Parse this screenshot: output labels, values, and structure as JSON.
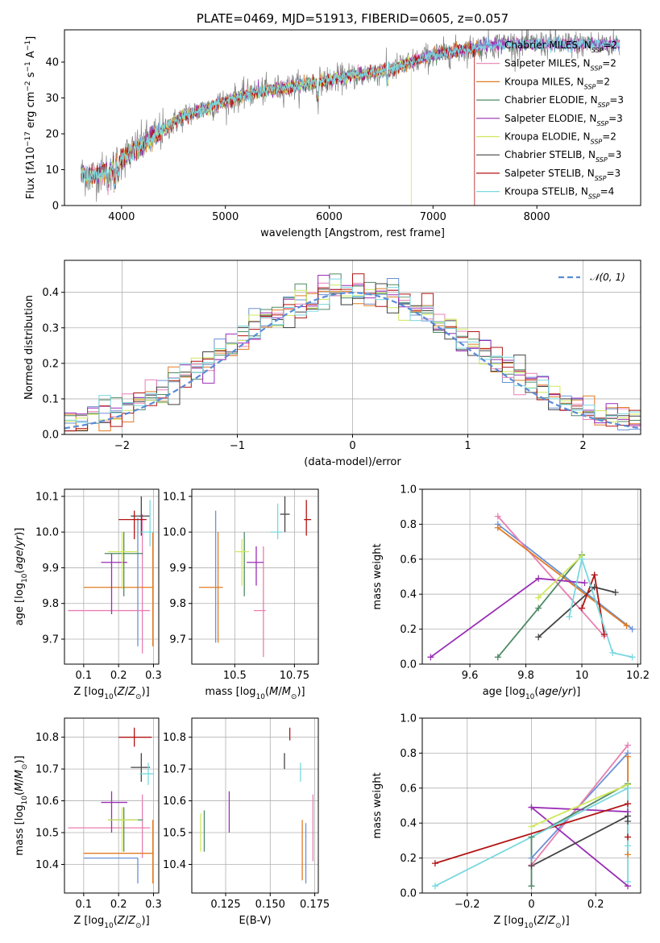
{
  "colors": [
    "#6a91d6",
    "#e87fb1",
    "#e07b24",
    "#4e8a66",
    "#9a2fb5",
    "#cfe85a",
    "#444444",
    "#b21414",
    "#79d8e0"
  ],
  "legend_labels": [
    "Chabrier MILES, N<sub>SSP</sub>=2",
    "Salpeter MILES, N<sub>SSP</sub>=2",
    "Kroupa MILES, N<sub>SSP</sub>=2",
    "Chabrier ELODIE, N<sub>SSP</sub>=3",
    "Salpeter ELODIE, N<sub>SSP</sub>=3",
    "Kroupa ELODIE, N<sub>SSP</sub>=2",
    "Chabrier STELIB, N<sub>SSP</sub>=3",
    "Salpeter STELIB, N<sub>SSP</sub>=3",
    "Kroupa STELIB, N<sub>SSP</sub>=4"
  ],
  "chart_data": [
    {
      "id": "spectrum",
      "type": "line",
      "title": "PLATE=0469, MJD=51913, FIBERID=0605, z=0.057",
      "xlabel": "wavelength [Angstrom, rest frame]",
      "ylabel": "Flux [f<tspan font-style='italic'>λ</tspan>10<tspan baseline-shift='super' font-size='9'>−17</tspan> erg cm<tspan baseline-shift='super' font-size='9'>−2</tspan> s<tspan baseline-shift='super' font-size='9'>−1</tspan> A<tspan baseline-shift='super' font-size='9'>−1</tspan>]",
      "xlim": [
        3450,
        9000
      ],
      "ylim": [
        0,
        49
      ],
      "xticks": [
        4000,
        5000,
        6000,
        7000,
        8000
      ],
      "yticks": [
        0,
        10,
        20,
        30,
        40
      ],
      "continuum": {
        "x": [
          3600,
          3700,
          3800,
          3900,
          4000,
          4100,
          4200,
          4300,
          4400,
          4500,
          4600,
          4800,
          5000,
          5200,
          5400,
          5600,
          5800,
          6000,
          6200,
          6400,
          6600,
          6800,
          7000,
          7200,
          7400,
          7600,
          7800,
          8000,
          8200,
          8400,
          8600,
          8800
        ],
        "y": [
          9,
          8,
          9,
          10,
          13,
          15,
          17,
          19,
          21,
          23,
          25,
          27,
          29,
          31,
          32,
          33,
          34,
          35,
          36,
          37,
          38,
          40,
          42,
          43,
          44,
          45,
          45,
          45,
          45,
          45,
          45,
          45
        ]
      },
      "dropouts": [
        {
          "series": 5,
          "x": 6790
        },
        {
          "series": 7,
          "x": 7400
        }
      ],
      "series_end_x": [
        8800,
        8800,
        7450,
        8800,
        8800,
        6790,
        8800,
        7400,
        8800
      ]
    },
    {
      "id": "residuals",
      "type": "histogram",
      "xlabel": "(data-model)/error",
      "ylabel": "Normed distribution",
      "xlim": [
        -2.5,
        2.5
      ],
      "ylim": [
        0,
        0.49
      ],
      "xticks": [
        -2,
        -1,
        0,
        1,
        2
      ],
      "yticks": [
        0.0,
        0.1,
        0.2,
        0.3,
        0.4
      ],
      "bin_width": 0.1,
      "reference_label": "𝒩(0, 1)",
      "reference_curve": "normal(0,1)"
    },
    {
      "id": "age-vs-Z",
      "type": "errorbar",
      "xlabel": "Z [log<tspan baseline-shift='sub' font-size='9'>10</tspan>(<tspan font-style='italic'>Z</tspan>/<tspan font-style='italic'>Z</tspan><tspan baseline-shift='sub' font-size='9'>⊙</tspan>)]",
      "ylabel": "age  [log<tspan baseline-shift='sub' font-size='9'>10</tspan>(<tspan font-style='italic'>age</tspan>/<tspan font-style='italic'>yr</tspan>)]",
      "xlim": [
        0.045,
        0.315
      ],
      "ylim": [
        9.63,
        10.12
      ],
      "xticks": [
        0.1,
        0.2,
        0.3
      ],
      "yticks": [
        9.7,
        9.8,
        9.9,
        10.0,
        10.1
      ],
      "points": [
        {
          "x": 0.255,
          "y": 9.845,
          "xerr": [
            0.255,
            0.255
          ],
          "yerr": [
            9.68,
            10.04
          ]
        },
        {
          "x": 0.268,
          "y": 9.78,
          "xerr": [
            0.055,
            0.29
          ],
          "yerr": [
            9.66,
            10.05
          ]
        },
        {
          "x": 0.298,
          "y": 9.845,
          "xerr": [
            0.1,
            0.298
          ],
          "yerr": [
            9.68,
            10.0
          ]
        },
        {
          "x": 0.215,
          "y": 9.94,
          "xerr": [
            0.16,
            0.27
          ],
          "yerr": [
            9.82,
            10.0
          ]
        },
        {
          "x": 0.18,
          "y": 9.915,
          "xerr": [
            0.15,
            0.225
          ],
          "yerr": [
            9.77,
            9.94
          ]
        },
        {
          "x": 0.21,
          "y": 9.945,
          "xerr": [
            0.17,
            0.255
          ],
          "yerr": [
            9.84,
            10.0
          ]
        },
        {
          "x": 0.265,
          "y": 10.045,
          "xerr": [
            0.235,
            0.29
          ],
          "yerr": [
            9.99,
            10.1
          ]
        },
        {
          "x": 0.245,
          "y": 10.035,
          "xerr": [
            0.2,
            0.28
          ],
          "yerr": [
            9.98,
            10.06
          ]
        },
        {
          "x": 0.29,
          "y": 10.0,
          "xerr": [
            0.265,
            0.3
          ],
          "yerr": [
            9.96,
            10.09
          ]
        }
      ]
    },
    {
      "id": "age-vs-mass",
      "type": "errorbar",
      "xlabel": "mass [log<tspan baseline-shift='sub' font-size='9'>10</tspan>(<tspan font-style='italic'>M</tspan>/<tspan font-style='italic'>M</tspan><tspan baseline-shift='sub' font-size='9'>⊙</tspan>)]",
      "ylabel": "",
      "xlim": [
        10.32,
        10.85
      ],
      "ylim": [
        9.63,
        10.12
      ],
      "xticks": [
        10.5,
        10.75
      ],
      "yticks": [
        9.7,
        9.8,
        9.9,
        10.0,
        10.1
      ],
      "points": [
        {
          "x": 10.42,
          "y": 9.845,
          "xerr": [
            10.42,
            10.42
          ],
          "yerr": [
            9.69,
            10.06
          ]
        },
        {
          "x": 10.62,
          "y": 9.78,
          "xerr": [
            10.58,
            10.63
          ],
          "yerr": [
            9.65,
            9.96
          ]
        },
        {
          "x": 10.43,
          "y": 9.845,
          "xerr": [
            10.35,
            10.45
          ],
          "yerr": [
            9.69,
            10.0
          ]
        },
        {
          "x": 10.54,
          "y": 9.945,
          "xerr": [
            10.54,
            10.54
          ],
          "yerr": [
            9.82,
            10.0
          ]
        },
        {
          "x": 10.59,
          "y": 9.915,
          "xerr": [
            10.55,
            10.62
          ],
          "yerr": [
            9.85,
            9.96
          ]
        },
        {
          "x": 10.53,
          "y": 9.945,
          "xerr": [
            10.5,
            10.56
          ],
          "yerr": [
            9.85,
            9.98
          ]
        },
        {
          "x": 10.71,
          "y": 10.05,
          "xerr": [
            10.69,
            10.73
          ],
          "yerr": [
            10.0,
            10.1
          ]
        },
        {
          "x": 10.8,
          "y": 10.035,
          "xerr": [
            10.79,
            10.82
          ],
          "yerr": [
            9.99,
            10.09
          ]
        },
        {
          "x": 10.68,
          "y": 10.0,
          "xerr": [
            10.65,
            10.7
          ],
          "yerr": [
            9.98,
            10.08
          ]
        }
      ]
    },
    {
      "id": "weight-vs-age",
      "type": "line",
      "xlabel": "age  [log<tspan baseline-shift='sub' font-size='9'>10</tspan>(<tspan font-style='italic'>age</tspan>/<tspan font-style='italic'>yr</tspan>)]",
      "ylabel": "mass weight",
      "xlim": [
        9.43,
        10.21
      ],
      "ylim": [
        0,
        1.0
      ],
      "xticks": [
        9.6,
        9.8,
        10.0,
        10.2
      ],
      "yticks": [
        0.0,
        0.2,
        0.4,
        0.6,
        0.8,
        1.0
      ],
      "series": [
        {
          "x": [
            9.7,
            10.18
          ],
          "y": [
            0.8,
            0.2
          ]
        },
        {
          "x": [
            9.7,
            10.08
          ],
          "y": [
            0.845,
            0.16
          ]
        },
        {
          "x": [
            9.7,
            10.16
          ],
          "y": [
            0.78,
            0.22
          ]
        },
        {
          "x": [
            9.7,
            9.845,
            10.0
          ],
          "y": [
            0.04,
            0.32,
            0.625
          ]
        },
        {
          "x": [
            9.46,
            9.845,
            10.01
          ],
          "y": [
            0.04,
            0.49,
            0.465
          ]
        },
        {
          "x": [
            9.845,
            10.0
          ],
          "y": [
            0.38,
            0.62
          ]
        },
        {
          "x": [
            9.845,
            10.045,
            10.12
          ],
          "y": [
            0.155,
            0.44,
            0.41
          ]
        },
        {
          "x": [
            10.0,
            10.045,
            10.08
          ],
          "y": [
            0.32,
            0.51,
            0.17
          ]
        },
        {
          "x": [
            9.955,
            10.0,
            10.11,
            10.18
          ],
          "y": [
            0.27,
            0.6,
            0.065,
            0.04
          ]
        }
      ]
    },
    {
      "id": "mass-vs-Z",
      "type": "errorbar",
      "xlabel": "Z [log<tspan baseline-shift='sub' font-size='9'>10</tspan>(<tspan font-style='italic'>Z</tspan>/<tspan font-style='italic'>Z</tspan><tspan baseline-shift='sub' font-size='9'>⊙</tspan>)]",
      "ylabel": "mass [log<tspan baseline-shift='sub' font-size='9'>10</tspan>(<tspan font-style='italic'>M</tspan>/<tspan font-style='italic'>M</tspan><tspan baseline-shift='sub' font-size='9'>⊙</tspan>)]",
      "xlim": [
        0.045,
        0.315
      ],
      "ylim": [
        10.31,
        10.86
      ],
      "xticks": [
        0.1,
        0.2,
        0.3
      ],
      "yticks": [
        10.4,
        10.5,
        10.6,
        10.7,
        10.8
      ],
      "points": [
        {
          "x": 0.255,
          "y": 10.42,
          "xerr": [
            0.1,
            0.255
          ],
          "yerr": [
            10.34,
            10.42
          ]
        },
        {
          "x": 0.268,
          "y": 10.515,
          "xerr": [
            0.055,
            0.29
          ],
          "yerr": [
            10.42,
            10.62
          ]
        },
        {
          "x": 0.298,
          "y": 10.435,
          "xerr": [
            0.1,
            0.298
          ],
          "yerr": [
            10.34,
            10.54
          ]
        },
        {
          "x": 0.215,
          "y": 10.54,
          "xerr": [
            0.17,
            0.27
          ],
          "yerr": [
            10.44,
            10.58
          ]
        },
        {
          "x": 0.18,
          "y": 10.595,
          "xerr": [
            0.15,
            0.225
          ],
          "yerr": [
            10.5,
            10.63
          ]
        },
        {
          "x": 0.21,
          "y": 10.54,
          "xerr": [
            0.17,
            0.255
          ],
          "yerr": [
            10.44,
            10.58
          ]
        },
        {
          "x": 0.265,
          "y": 10.705,
          "xerr": [
            0.235,
            0.29
          ],
          "yerr": [
            10.66,
            10.75
          ]
        },
        {
          "x": 0.245,
          "y": 10.8,
          "xerr": [
            0.2,
            0.295
          ],
          "yerr": [
            10.77,
            10.83
          ]
        },
        {
          "x": 0.285,
          "y": 10.685,
          "xerr": [
            0.26,
            0.3
          ],
          "yerr": [
            10.65,
            10.72
          ]
        }
      ]
    },
    {
      "id": "mass-vs-EBV",
      "type": "errorbar",
      "xlabel": "E(B-V)",
      "ylabel": "",
      "xlim": [
        0.106,
        0.177
      ],
      "ylim": [
        10.31,
        10.86
      ],
      "xticks": [
        0.125,
        0.15,
        0.175
      ],
      "xticklabels": [
        "0.125",
        "0.150",
        "0.175"
      ],
      "yticks": [
        10.4,
        10.5,
        10.6,
        10.7,
        10.8
      ],
      "points": [
        {
          "x": 0.17,
          "y": 10.42,
          "xerr": [
            0.17,
            0.17
          ],
          "yerr": [
            10.34,
            10.53
          ]
        },
        {
          "x": 0.174,
          "y": 10.52,
          "xerr": [
            0.174,
            0.174
          ],
          "yerr": [
            10.41,
            10.62
          ]
        },
        {
          "x": 0.168,
          "y": 10.44,
          "xerr": [
            0.168,
            0.168
          ],
          "yerr": [
            10.35,
            10.54
          ]
        },
        {
          "x": 0.113,
          "y": 10.5,
          "xerr": [
            0.113,
            0.113
          ],
          "yerr": [
            10.44,
            10.57
          ]
        },
        {
          "x": 0.127,
          "y": 10.56,
          "xerr": [
            0.127,
            0.127
          ],
          "yerr": [
            10.5,
            10.63
          ]
        },
        {
          "x": 0.111,
          "y": 10.5,
          "xerr": [
            0.111,
            0.111
          ],
          "yerr": [
            10.44,
            10.56
          ]
        },
        {
          "x": 0.158,
          "y": 10.72,
          "xerr": [
            0.158,
            0.158
          ],
          "yerr": [
            10.7,
            10.75
          ]
        },
        {
          "x": 0.161,
          "y": 10.81,
          "xerr": [
            0.161,
            0.161
          ],
          "yerr": [
            10.79,
            10.83
          ]
        },
        {
          "x": 0.167,
          "y": 10.68,
          "xerr": [
            0.167,
            0.167
          ],
          "yerr": [
            10.66,
            10.72
          ]
        }
      ]
    },
    {
      "id": "weight-vs-Z",
      "type": "line",
      "xlabel": "Z [log<tspan baseline-shift='sub' font-size='9'>10</tspan>(<tspan font-style='italic'>Z</tspan>/<tspan font-style='italic'>Z</tspan><tspan baseline-shift='sub' font-size='9'>⊙</tspan>)]",
      "ylabel": "mass weight",
      "xlim": [
        -0.34,
        0.34
      ],
      "ylim": [
        0,
        1.0
      ],
      "xticks": [
        -0.2,
        0.0,
        0.2
      ],
      "yticks": [
        0.0,
        0.2,
        0.4,
        0.6,
        0.8,
        1.0
      ],
      "series": [
        {
          "x": [
            0.0,
            0.3
          ],
          "y": [
            0.2,
            0.8
          ]
        },
        {
          "x": [
            0.0,
            0.3
          ],
          "y": [
            0.16,
            0.845
          ]
        },
        {
          "x": [
            0.3,
            0.3
          ],
          "y": [
            0.22,
            0.78
          ]
        },
        {
          "x": [
            0.0,
            0.0,
            0.3
          ],
          "y": [
            0.04,
            0.32,
            0.625
          ]
        },
        {
          "x": [
            0.3,
            0.0,
            0.3
          ],
          "y": [
            0.04,
            0.49,
            0.465
          ]
        },
        {
          "x": [
            0.0,
            0.3
          ],
          "y": [
            0.38,
            0.62
          ]
        },
        {
          "x": [
            0.0,
            0.3,
            0.3
          ],
          "y": [
            0.155,
            0.44,
            0.41
          ]
        },
        {
          "x": [
            -0.3,
            0.3,
            0.3
          ],
          "y": [
            0.17,
            0.51,
            0.32
          ]
        },
        {
          "x": [
            -0.3,
            0.3,
            0.3,
            0.3
          ],
          "y": [
            0.04,
            0.6,
            0.065,
            0.27
          ]
        }
      ]
    }
  ]
}
